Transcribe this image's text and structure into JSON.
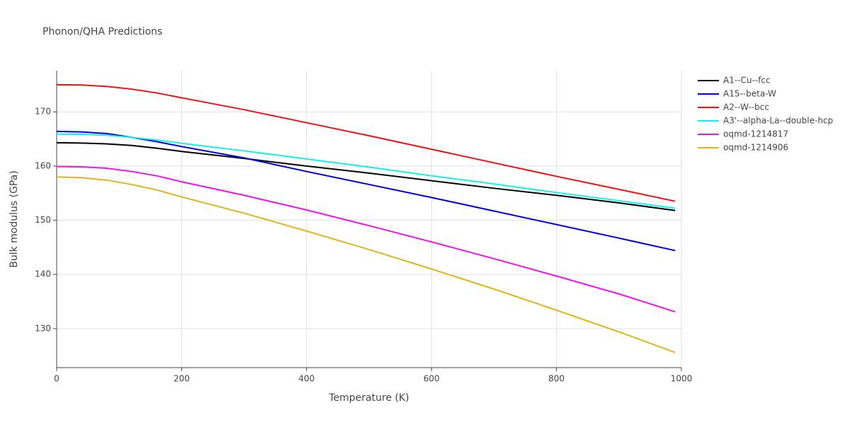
{
  "chart_data": {
    "type": "line",
    "title": "Phonon/QHA Predictions",
    "x_label": "Temperature (K)",
    "y_label": "Bulk modulus (GPa)",
    "x": [
      0,
      40,
      80,
      120,
      160,
      200,
      300,
      400,
      500,
      600,
      700,
      800,
      900,
      990
    ],
    "series": [
      {
        "name": "A1--Cu--fcc",
        "color": "#000000",
        "values": [
          164.3,
          164.25,
          164.1,
          163.8,
          163.3,
          162.7,
          161.4,
          160.0,
          158.7,
          157.3,
          155.9,
          154.6,
          153.2,
          151.8
        ]
      },
      {
        "name": "A15--beta-W",
        "color": "#0000dd",
        "values": [
          166.4,
          166.3,
          166.0,
          165.3,
          164.5,
          163.6,
          161.5,
          159.0,
          156.6,
          154.2,
          151.7,
          149.2,
          146.7,
          144.4
        ]
      },
      {
        "name": "A2--W--bcc",
        "color": "#ee1111",
        "values": [
          175.0,
          174.95,
          174.7,
          174.2,
          173.5,
          172.6,
          170.4,
          168.0,
          165.6,
          163.1,
          160.6,
          158.1,
          155.7,
          153.5
        ]
      },
      {
        "name": "A3'--alpha-La--double-hcp",
        "color": "#11eeee",
        "values": [
          165.9,
          165.85,
          165.7,
          165.3,
          164.8,
          164.2,
          162.8,
          161.3,
          159.8,
          158.2,
          156.7,
          155.1,
          153.6,
          152.2
        ]
      },
      {
        "name": "oqmd-1214817",
        "color": "#ee11ee",
        "values": [
          159.9,
          159.85,
          159.6,
          159.0,
          158.2,
          157.1,
          154.6,
          151.9,
          149.0,
          146.0,
          142.9,
          139.7,
          136.4,
          133.1
        ]
      },
      {
        "name": "oqmd-1214906",
        "color": "#e5b21a",
        "values": [
          158.0,
          157.85,
          157.4,
          156.6,
          155.6,
          154.3,
          151.3,
          148.0,
          144.6,
          141.0,
          137.3,
          133.4,
          129.4,
          125.6
        ]
      }
    ],
    "xlim": [
      0,
      1000
    ],
    "ylim": [
      122.8,
      177.6
    ],
    "xticks": [
      0,
      200,
      400,
      600,
      800,
      1000
    ],
    "yticks": [
      130,
      140,
      150,
      160,
      170
    ],
    "grid": true,
    "legend": "right"
  }
}
